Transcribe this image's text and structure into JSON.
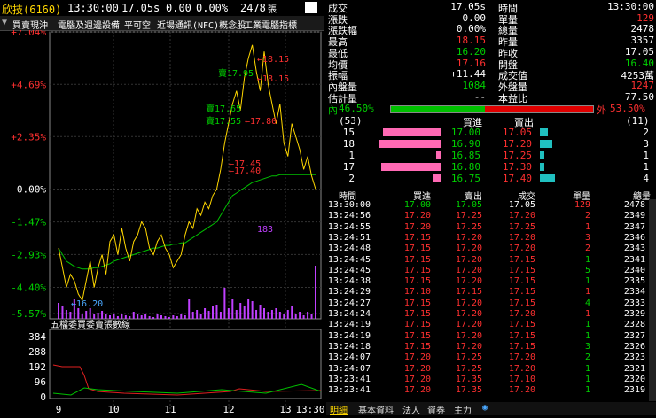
{
  "header": {
    "stock_name": "欣技(6160)",
    "time": "13:30:00",
    "price": "17.05",
    "price_suffix": "s",
    "change": "0.00",
    "change_pct": "0.00%",
    "volume": "2478",
    "volume_unit": "張"
  },
  "tags": [
    "買賣現沖",
    "電腦及週邊設備",
    "平可空",
    "近場通訊(NFC)概念股",
    "工業電腦指標"
  ],
  "chart_data": {
    "type": "line",
    "y_ticks": [
      "+7.04%",
      "+4.69%",
      "+2.35%",
      "0.00%",
      "-1.47%",
      "-2.93%",
      "-4.40%",
      "-5.57%"
    ],
    "x_ticks": [
      "9",
      "10",
      "11",
      "12",
      "13",
      "13:30"
    ],
    "annotations": [
      {
        "text": "←18.15",
        "color": "#ff3030"
      },
      {
        "text": "賣17.95",
        "color": "#00d000"
      },
      {
        "text": "←18.15",
        "color": "#ff3030"
      },
      {
        "text": "賣17.65",
        "color": "#00d000"
      },
      {
        "text": "賣17.55",
        "color": "#00d000"
      },
      {
        "text": "←17.80",
        "color": "#ff3030"
      },
      {
        "text": "←17.45",
        "color": "#ff3030"
      },
      {
        "text": "←17.40",
        "color": "#ff3030"
      },
      {
        "text": "←16.20",
        "color": "#4aa8ff"
      },
      {
        "text": "183",
        "color": "#c040ff"
      }
    ],
    "price_series": [
      16.6,
      16.45,
      16.3,
      16.4,
      16.35,
      16.25,
      16.2,
      16.35,
      16.5,
      16.3,
      16.45,
      16.55,
      16.4,
      16.65,
      16.7,
      16.55,
      16.75,
      16.6,
      16.5,
      16.65,
      16.7,
      16.8,
      16.75,
      16.6,
      16.55,
      16.65,
      16.7,
      16.6,
      16.55,
      16.45,
      16.5,
      16.55,
      16.7,
      16.8,
      16.75,
      16.9,
      16.85,
      16.95,
      16.9,
      17.0,
      17.05,
      17.2,
      17.4,
      17.55,
      17.7,
      17.8,
      17.65,
      17.9,
      18.05,
      18.15,
      17.95,
      17.8,
      18.1,
      17.85,
      17.7,
      17.55,
      17.7,
      17.4,
      17.3,
      17.55,
      17.45,
      17.35,
      17.2,
      17.3,
      17.15,
      17.05
    ],
    "avg_series": [
      16.6,
      16.55,
      16.5,
      16.48,
      16.46,
      16.45,
      16.44,
      16.44,
      16.44,
      16.45,
      16.45,
      16.46,
      16.47,
      16.48,
      16.5,
      16.51,
      16.52,
      16.53,
      16.54,
      16.55,
      16.56,
      16.57,
      16.58,
      16.59,
      16.6,
      16.6,
      16.61,
      16.62,
      16.62,
      16.63,
      16.63,
      16.64,
      16.64,
      16.66,
      16.68,
      16.7,
      16.72,
      16.74,
      16.76,
      16.78,
      16.8,
      16.85,
      16.9,
      16.95,
      17.0,
      17.02,
      17.04,
      17.06,
      17.08,
      17.1,
      17.11,
      17.12,
      17.13,
      17.14,
      17.15,
      17.15,
      17.16,
      17.16,
      17.16,
      17.16,
      17.16,
      17.16,
      17.16,
      17.16,
      17.16,
      17.16
    ],
    "vol_peak": "183",
    "low_label": "16.20",
    "ratio_title": "五檔委買委賣張數線",
    "ratio_ticks": [
      "384",
      "288",
      "192",
      "96",
      "0"
    ],
    "ref_price": 17.05,
    "y_min_pct": -5.57,
    "y_max_pct": 7.04
  },
  "quote": {
    "rows": [
      {
        "l": "成交",
        "lv": "17.05s",
        "lc": "#ffffff",
        "r": "時間",
        "rv": "13:30:00",
        "rc": "#ffffff"
      },
      {
        "l": "漲跌",
        "lv": "0.00",
        "lc": "#ffffff",
        "r": "單量",
        "rv": "129",
        "rc": "#ff3030"
      },
      {
        "l": "漲跌幅",
        "lv": "0.00%",
        "lc": "#ffffff",
        "r": "總量",
        "rv": "2478",
        "rc": "#ffffff"
      },
      {
        "l": "最高",
        "lv": "18.15",
        "lc": "#ff3030",
        "r": "昨量",
        "rv": "3357",
        "rc": "#ffffff"
      },
      {
        "l": "最低",
        "lv": "16.20",
        "lc": "#00d000",
        "r": "昨收",
        "rv": "17.05",
        "rc": "#ffffff"
      },
      {
        "l": "均價",
        "lv": "17.16",
        "lc": "#ff3030",
        "r": "開盤",
        "rv": "16.40",
        "rc": "#00d000"
      },
      {
        "l": "振幅",
        "lv": "+11.44",
        "lc": "#ffffff",
        "r": "成交值",
        "rv": "4253萬",
        "rc": "#ffffff"
      },
      {
        "l": "內盤量",
        "lv": "1084",
        "lc": "#00d000",
        "r": "外盤量",
        "rv": "1247",
        "rc": "#ff3030"
      },
      {
        "l": "估計量",
        "lv": "--",
        "lc": "#ffffff",
        "r": "本益比",
        "rv": "77.50",
        "rc": "#ffffff"
      }
    ],
    "inner_label": "內",
    "inner_pct": "46.50%",
    "outer_label": "外",
    "outer_pct": "53.50%",
    "inner_fraction": 0.465
  },
  "book": {
    "left_total": "(53)",
    "right_total": "(11)",
    "bid_header": "買進",
    "ask_header": "賣出",
    "levels": [
      {
        "bq": "15",
        "bp": "17.00",
        "ap": "17.05",
        "aq": "2",
        "bfrac": 0.95,
        "afrac": 0.35
      },
      {
        "bq": "18",
        "bp": "16.90",
        "ap": "17.20",
        "aq": "3",
        "bfrac": 1.0,
        "afrac": 0.55
      },
      {
        "bq": "1",
        "bp": "16.85",
        "ap": "17.25",
        "aq": "1",
        "bfrac": 0.08,
        "afrac": 0.2
      },
      {
        "bq": "17",
        "bp": "16.80",
        "ap": "17.30",
        "aq": "1",
        "bfrac": 0.97,
        "afrac": 0.2
      },
      {
        "bq": "2",
        "bp": "16.75",
        "ap": "17.40",
        "aq": "4",
        "bfrac": 0.14,
        "afrac": 0.65
      }
    ]
  },
  "ticks_header": {
    "time": "時間",
    "bid": "買進",
    "ask": "賣出",
    "deal": "成交",
    "qty": "單量",
    "total": "總量"
  },
  "ticks": [
    {
      "t": "13:30:00",
      "b": "17.00",
      "a": "17.05",
      "d": "17.05",
      "q": "129",
      "v": "2478",
      "bc": "#00d000",
      "dc": "#ffffff",
      "qc": "#ff3030"
    },
    {
      "t": "13:24:56",
      "b": "17.20",
      "a": "17.25",
      "d": "17.20",
      "q": "2",
      "v": "2349",
      "bc": "#ff3030",
      "dc": "#ff3030",
      "qc": "#ff3030"
    },
    {
      "t": "13:24:55",
      "b": "17.20",
      "a": "17.25",
      "d": "17.25",
      "q": "1",
      "v": "2347",
      "bc": "#ff3030",
      "dc": "#ff3030",
      "qc": "#ff3030"
    },
    {
      "t": "13:24:51",
      "b": "17.15",
      "a": "17.20",
      "d": "17.20",
      "q": "3",
      "v": "2346",
      "bc": "#ff3030",
      "dc": "#ff3030",
      "qc": "#ff3030"
    },
    {
      "t": "13:24:48",
      "b": "17.15",
      "a": "17.20",
      "d": "17.20",
      "q": "2",
      "v": "2343",
      "bc": "#ff3030",
      "dc": "#ff3030",
      "qc": "#ff3030"
    },
    {
      "t": "13:24:45",
      "b": "17.15",
      "a": "17.20",
      "d": "17.15",
      "q": "1",
      "v": "2341",
      "bc": "#ff3030",
      "dc": "#ff3030",
      "qc": "#00d000"
    },
    {
      "t": "13:24:45",
      "b": "17.15",
      "a": "17.20",
      "d": "17.15",
      "q": "5",
      "v": "2340",
      "bc": "#ff3030",
      "dc": "#ff3030",
      "qc": "#00d000"
    },
    {
      "t": "13:24:38",
      "b": "17.15",
      "a": "17.20",
      "d": "17.15",
      "q": "1",
      "v": "2335",
      "bc": "#ff3030",
      "dc": "#ff3030",
      "qc": "#00d000"
    },
    {
      "t": "13:24:29",
      "b": "17.10",
      "a": "17.15",
      "d": "17.15",
      "q": "1",
      "v": "2334",
      "bc": "#ff3030",
      "dc": "#ff3030",
      "qc": "#ff3030"
    },
    {
      "t": "13:24:27",
      "b": "17.15",
      "a": "17.20",
      "d": "17.15",
      "q": "4",
      "v": "2333",
      "bc": "#ff3030",
      "dc": "#ff3030",
      "qc": "#00d000"
    },
    {
      "t": "13:24:24",
      "b": "17.15",
      "a": "17.20",
      "d": "17.20",
      "q": "1",
      "v": "2329",
      "bc": "#ff3030",
      "dc": "#ff3030",
      "qc": "#ff3030"
    },
    {
      "t": "13:24:19",
      "b": "17.15",
      "a": "17.20",
      "d": "17.15",
      "q": "1",
      "v": "2328",
      "bc": "#ff3030",
      "dc": "#ff3030",
      "qc": "#00d000"
    },
    {
      "t": "13:24:19",
      "b": "17.15",
      "a": "17.20",
      "d": "17.15",
      "q": "1",
      "v": "2327",
      "bc": "#ff3030",
      "dc": "#ff3030",
      "qc": "#00d000"
    },
    {
      "t": "13:24:18",
      "b": "17.15",
      "a": "17.20",
      "d": "17.15",
      "q": "3",
      "v": "2326",
      "bc": "#ff3030",
      "dc": "#ff3030",
      "qc": "#00d000"
    },
    {
      "t": "13:24:07",
      "b": "17.20",
      "a": "17.25",
      "d": "17.20",
      "q": "2",
      "v": "2323",
      "bc": "#ff3030",
      "dc": "#ff3030",
      "qc": "#00d000"
    },
    {
      "t": "13:24:07",
      "b": "17.20",
      "a": "17.25",
      "d": "17.20",
      "q": "1",
      "v": "2321",
      "bc": "#ff3030",
      "dc": "#ff3030",
      "qc": "#00d000"
    },
    {
      "t": "13:23:41",
      "b": "17.20",
      "a": "17.35",
      "d": "17.10",
      "q": "1",
      "v": "2320",
      "bc": "#ff3030",
      "dc": "#ff3030",
      "qc": "#00d000"
    },
    {
      "t": "13:23:41",
      "b": "17.20",
      "a": "17.35",
      "d": "17.20",
      "q": "1",
      "v": "2319",
      "bc": "#ff3030",
      "dc": "#ff3030",
      "qc": "#00d000"
    }
  ],
  "bottom_tabs": [
    "明細",
    "基本資料",
    "法人",
    "資券",
    "主力"
  ]
}
